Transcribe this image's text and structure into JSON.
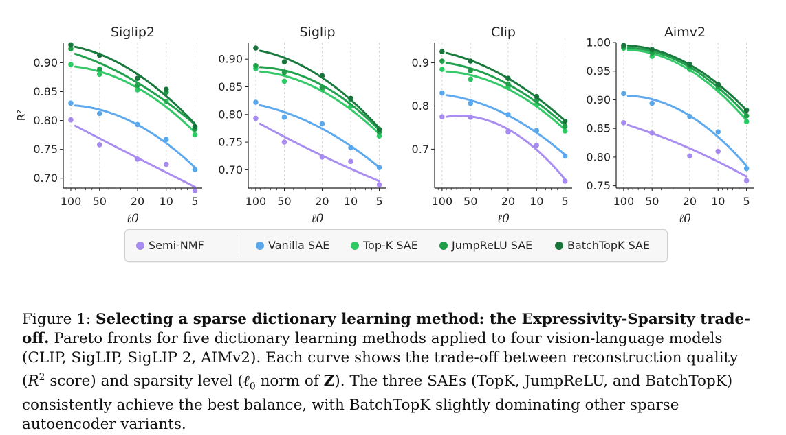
{
  "chart_data": [
    {
      "type": "scatter",
      "title": "Siglip2",
      "xlabel": "ℓ0",
      "ylabel": "R²",
      "x": [
        100,
        50,
        20,
        10,
        5
      ],
      "xticklabels": [
        "100",
        "50",
        "20",
        "10",
        "5"
      ],
      "yticks": [
        0.7,
        0.75,
        0.8,
        0.85,
        0.9
      ],
      "yticklabels": [
        "0.70",
        "0.75",
        "0.80",
        "0.85",
        "0.90"
      ],
      "ylim": [
        0.683,
        0.935
      ],
      "series": [
        {
          "name": "Semi-NMF",
          "points": [
            [
              100,
              0.801
            ],
            [
              50,
              0.758
            ],
            [
              20,
              0.733
            ],
            [
              10,
              0.724
            ],
            [
              5,
              0.678
            ]
          ]
        },
        {
          "name": "Vanilla SAE",
          "points": [
            [
              100,
              0.83
            ],
            [
              50,
              0.812
            ],
            [
              20,
              0.793
            ],
            [
              10,
              0.767
            ],
            [
              5,
              0.715
            ]
          ]
        },
        {
          "name": "Top-K SAE",
          "points": [
            [
              100,
              0.897
            ],
            [
              50,
              0.88
            ],
            [
              20,
              0.853
            ],
            [
              10,
              0.833
            ],
            [
              5,
              0.775
            ]
          ]
        },
        {
          "name": "JumpReLU SAE",
          "points": [
            [
              100,
              0.924
            ],
            [
              50,
              0.889
            ],
            [
              20,
              0.861
            ],
            [
              10,
              0.849
            ],
            [
              5,
              0.785
            ]
          ]
        },
        {
          "name": "BatchTopK SAE",
          "points": [
            [
              100,
              0.931
            ],
            [
              50,
              0.913
            ],
            [
              20,
              0.873
            ],
            [
              10,
              0.854
            ],
            [
              5,
              0.789
            ]
          ]
        }
      ]
    },
    {
      "type": "scatter",
      "title": "Siglip",
      "xlabel": "ℓ0",
      "ylabel": "",
      "x": [
        100,
        50,
        20,
        10,
        5
      ],
      "xticklabels": [
        "100",
        "50",
        "20",
        "10",
        "5"
      ],
      "yticks": [
        0.7,
        0.75,
        0.8,
        0.85,
        0.9
      ],
      "yticklabels": [
        "0.70",
        "0.75",
        "0.80",
        "0.85",
        "0.90"
      ],
      "ylim": [
        0.667,
        0.93
      ],
      "series": [
        {
          "name": "Semi-NMF",
          "points": [
            [
              100,
              0.793
            ],
            [
              50,
              0.75
            ],
            [
              20,
              0.723
            ],
            [
              10,
              0.715
            ],
            [
              5,
              0.673
            ]
          ]
        },
        {
          "name": "Vanilla SAE",
          "points": [
            [
              100,
              0.822
            ],
            [
              50,
              0.795
            ],
            [
              20,
              0.783
            ],
            [
              10,
              0.74
            ],
            [
              5,
              0.704
            ]
          ]
        },
        {
          "name": "Top-K SAE",
          "points": [
            [
              100,
              0.883
            ],
            [
              50,
              0.86
            ],
            [
              20,
              0.845
            ],
            [
              10,
              0.815
            ],
            [
              5,
              0.761
            ]
          ]
        },
        {
          "name": "JumpReLU SAE",
          "points": [
            [
              100,
              0.888
            ],
            [
              50,
              0.876
            ],
            [
              20,
              0.849
            ],
            [
              10,
              0.827
            ],
            [
              5,
              0.768
            ]
          ]
        },
        {
          "name": "BatchTopK SAE",
          "points": [
            [
              100,
              0.92
            ],
            [
              50,
              0.895
            ],
            [
              20,
              0.87
            ],
            [
              10,
              0.829
            ],
            [
              5,
              0.773
            ]
          ]
        }
      ]
    },
    {
      "type": "scatter",
      "title": "Clip",
      "xlabel": "ℓ0",
      "ylabel": "",
      "x": [
        100,
        50,
        20,
        10,
        5
      ],
      "xticklabels": [
        "100",
        "50",
        "20",
        "10",
        "5"
      ],
      "yticks": [
        0.7,
        0.8,
        0.9
      ],
      "yticklabels": [
        "0.7",
        "0.8",
        "0.9"
      ],
      "ylim": [
        0.61,
        0.947
      ],
      "series": [
        {
          "name": "Semi-NMF",
          "points": [
            [
              100,
              0.775
            ],
            [
              50,
              0.774
            ],
            [
              20,
              0.74
            ],
            [
              10,
              0.709
            ],
            [
              5,
              0.626
            ]
          ]
        },
        {
          "name": "Vanilla SAE",
          "points": [
            [
              100,
              0.83
            ],
            [
              50,
              0.806
            ],
            [
              20,
              0.78
            ],
            [
              10,
              0.743
            ],
            [
              5,
              0.684
            ]
          ]
        },
        {
          "name": "Top-K SAE",
          "points": [
            [
              100,
              0.885
            ],
            [
              50,
              0.862
            ],
            [
              20,
              0.843
            ],
            [
              10,
              0.803
            ],
            [
              5,
              0.742
            ]
          ]
        },
        {
          "name": "JumpReLU SAE",
          "points": [
            [
              100,
              0.904
            ],
            [
              50,
              0.882
            ],
            [
              20,
              0.851
            ],
            [
              10,
              0.813
            ],
            [
              5,
              0.753
            ]
          ]
        },
        {
          "name": "BatchTopK SAE",
          "points": [
            [
              100,
              0.926
            ],
            [
              50,
              0.904
            ],
            [
              20,
              0.864
            ],
            [
              10,
              0.822
            ],
            [
              5,
              0.765
            ]
          ]
        }
      ]
    },
    {
      "type": "scatter",
      "title": "Aimv2",
      "xlabel": "ℓ0",
      "ylabel": "",
      "x": [
        100,
        50,
        20,
        10,
        5
      ],
      "xticklabels": [
        "100",
        "50",
        "20",
        "10",
        "5"
      ],
      "yticks": [
        0.75,
        0.8,
        0.85,
        0.9,
        0.95,
        1.0
      ],
      "yticklabels": [
        "0.75",
        "0.80",
        "0.85",
        "0.90",
        "0.95",
        "1.00"
      ],
      "ylim": [
        0.746,
        1.0
      ],
      "series": [
        {
          "name": "Semi-NMF",
          "points": [
            [
              100,
              0.86
            ],
            [
              50,
              0.842
            ],
            [
              20,
              0.802
            ],
            [
              10,
              0.81
            ],
            [
              5,
              0.759
            ]
          ]
        },
        {
          "name": "Vanilla SAE",
          "points": [
            [
              100,
              0.911
            ],
            [
              50,
              0.894
            ],
            [
              20,
              0.871
            ],
            [
              10,
              0.844
            ],
            [
              5,
              0.78
            ]
          ]
        },
        {
          "name": "Top-K SAE",
          "points": [
            [
              100,
              0.99
            ],
            [
              50,
              0.976
            ],
            [
              20,
              0.953
            ],
            [
              10,
              0.918
            ],
            [
              5,
              0.862
            ]
          ]
        },
        {
          "name": "JumpReLU SAE",
          "points": [
            [
              100,
              0.992
            ],
            [
              50,
              0.982
            ],
            [
              20,
              0.958
            ],
            [
              10,
              0.923
            ],
            [
              5,
              0.872
            ]
          ]
        },
        {
          "name": "BatchTopK SAE",
          "points": [
            [
              100,
              0.995
            ],
            [
              50,
              0.988
            ],
            [
              20,
              0.962
            ],
            [
              10,
              0.927
            ],
            [
              5,
              0.882
            ]
          ]
        }
      ]
    }
  ],
  "legend": {
    "items": [
      {
        "label": "Semi-NMF",
        "color": "#a78bf0"
      },
      {
        "label": "Vanilla SAE",
        "color": "#5aa8ec"
      },
      {
        "label": "Top-K SAE",
        "color": "#2dc963"
      },
      {
        "label": "JumpReLU SAE",
        "color": "#1f9e48"
      },
      {
        "label": "BatchTopK SAE",
        "color": "#17743a"
      }
    ]
  },
  "caption": {
    "prefix": "Figure 1: ",
    "bold": "Selecting a sparse dictionary learning method: the Expressivity-Sparsity trade-off.",
    "text_1": " Pareto fronts for five dictionary learning methods applied to four vision-language models (CLIP, SigLIP, SigLIP 2, AIMv2). Each curve shows the trade-off between reconstruction quality (",
    "r_symbol": "R",
    "r_sup": "2",
    "text_2": " score) and sparsity level (",
    "l0_symbol": "ℓ",
    "l0_sub": "0",
    "text_3": " norm of ",
    "z_symbol": "Z",
    "text_4": "). The three SAEs (TopK, JumpReLU, and BatchTopK) consistently achieve the best balance, with BatchTopK slightly dominating other sparse autoencoder variants."
  }
}
